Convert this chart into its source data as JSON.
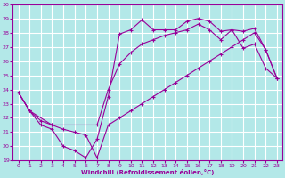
{
  "xlabel": "Windchill (Refroidissement éolien,°C)",
  "bg_color": "#b3e8e8",
  "grid_color": "#ffffff",
  "line_color": "#990099",
  "xlim": [
    -0.5,
    23.5
  ],
  "ylim": [
    19,
    30
  ],
  "xticks": [
    0,
    1,
    2,
    3,
    4,
    5,
    6,
    7,
    8,
    9,
    10,
    11,
    12,
    13,
    14,
    15,
    16,
    17,
    18,
    19,
    20,
    21,
    22,
    23
  ],
  "yticks": [
    19,
    20,
    21,
    22,
    23,
    24,
    25,
    26,
    27,
    28,
    29,
    30
  ],
  "line1_x": [
    0,
    1,
    2,
    3,
    4,
    5,
    6,
    7,
    8,
    9,
    10,
    11,
    12,
    13,
    14,
    15,
    16,
    17,
    18,
    19,
    20,
    21,
    22,
    23
  ],
  "line1_y": [
    23.8,
    22.5,
    21.5,
    21.2,
    20.0,
    19.7,
    19.2,
    20.5,
    23.5,
    27.9,
    28.2,
    28.9,
    28.2,
    28.2,
    28.2,
    28.8,
    29.0,
    28.8,
    28.1,
    28.2,
    26.9,
    27.2,
    25.5,
    24.8
  ],
  "line2_x": [
    0,
    1,
    3,
    7,
    8,
    9,
    10,
    11,
    12,
    13,
    14,
    15,
    16,
    17,
    18,
    19,
    20,
    21,
    22,
    23
  ],
  "line2_y": [
    23.8,
    22.5,
    21.5,
    21.5,
    24.0,
    25.8,
    26.6,
    27.2,
    27.5,
    27.8,
    28.0,
    28.2,
    28.6,
    28.2,
    27.5,
    28.2,
    28.1,
    28.3,
    26.8,
    24.8
  ],
  "line3_x": [
    0,
    1,
    2,
    3,
    4,
    5,
    6,
    7,
    8,
    9,
    10,
    11,
    12,
    13,
    14,
    15,
    16,
    17,
    18,
    19,
    20,
    21,
    22,
    23
  ],
  "line3_y": [
    23.8,
    22.5,
    21.8,
    21.5,
    21.2,
    21.0,
    20.8,
    19.2,
    21.5,
    22.0,
    22.5,
    23.0,
    23.5,
    24.0,
    24.5,
    25.0,
    25.5,
    26.0,
    26.5,
    27.0,
    27.5,
    28.0,
    26.8,
    24.8
  ]
}
